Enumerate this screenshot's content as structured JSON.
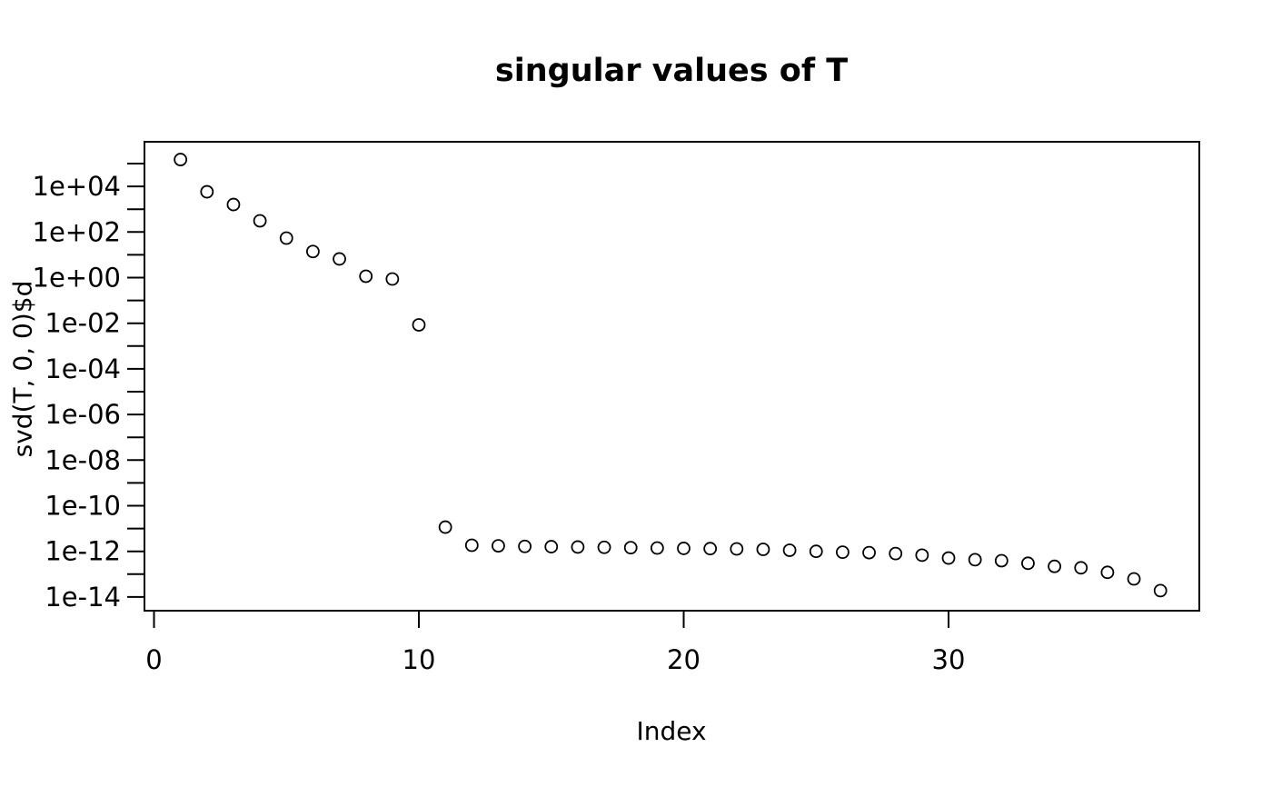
{
  "figure": {
    "title": "singular values of T",
    "xlabel": "Index",
    "ylabel": "svd(T, 0, 0)$d"
  },
  "colors": {
    "foreground": "#000000",
    "background": "#ffffff"
  },
  "chart_data": {
    "type": "scatter",
    "title": "singular values of T",
    "xlabel": "Index",
    "ylabel": "svd(T, 0, 0)$d",
    "y_scale": "log10",
    "marker": "open-circle",
    "grid": false,
    "legend": null,
    "n_points": 38,
    "xlim": [
      -0.5,
      39.5
    ],
    "ylim": [
      1e-15,
      900000.0
    ],
    "x": [
      1,
      2,
      3,
      4,
      5,
      6,
      7,
      8,
      9,
      10,
      11,
      12,
      13,
      14,
      15,
      16,
      17,
      18,
      19,
      20,
      21,
      22,
      23,
      24,
      25,
      26,
      27,
      28,
      29,
      30,
      31,
      32,
      33,
      34,
      35,
      36,
      37,
      38
    ],
    "y": [
      150000,
      5800,
      1600,
      310,
      54,
      14,
      6.6,
      1.15,
      0.87,
      0.0085,
      1.15e-11,
      1.85e-12,
      1.75e-12,
      1.65e-12,
      1.6e-12,
      1.55e-12,
      1.5e-12,
      1.45e-12,
      1.4e-12,
      1.35e-12,
      1.32e-12,
      1.28e-12,
      1.22e-12,
      1.12e-12,
      1e-12,
      9.2e-13,
      8.8e-13,
      8e-13,
      6.8e-13,
      5.1e-13,
      4.3e-13,
      3.9e-13,
      3e-13,
      2.2e-13,
      1.9e-13,
      1.2e-13,
      6.2e-14,
      1.9e-14
    ],
    "x_ticks": [
      {
        "value": 0,
        "label": "0"
      },
      {
        "value": 10,
        "label": "10"
      },
      {
        "value": 20,
        "label": "20"
      },
      {
        "value": 30,
        "label": "30"
      }
    ],
    "y_ticks": [
      {
        "exp": 5,
        "label": ""
      },
      {
        "exp": 4,
        "label": "1e+04"
      },
      {
        "exp": 3,
        "label": ""
      },
      {
        "exp": 2,
        "label": "1e+02"
      },
      {
        "exp": 1,
        "label": ""
      },
      {
        "exp": 0,
        "label": "1e+00"
      },
      {
        "exp": -1,
        "label": ""
      },
      {
        "exp": -2,
        "label": "1e-02"
      },
      {
        "exp": -3,
        "label": ""
      },
      {
        "exp": -4,
        "label": "1e-04"
      },
      {
        "exp": -5,
        "label": ""
      },
      {
        "exp": -6,
        "label": "1e-06"
      },
      {
        "exp": -7,
        "label": ""
      },
      {
        "exp": -8,
        "label": "1e-08"
      },
      {
        "exp": -9,
        "label": ""
      },
      {
        "exp": -10,
        "label": "1e-10"
      },
      {
        "exp": -11,
        "label": ""
      },
      {
        "exp": -12,
        "label": "1e-12"
      },
      {
        "exp": -13,
        "label": ""
      },
      {
        "exp": -14,
        "label": "1e-14"
      }
    ]
  }
}
